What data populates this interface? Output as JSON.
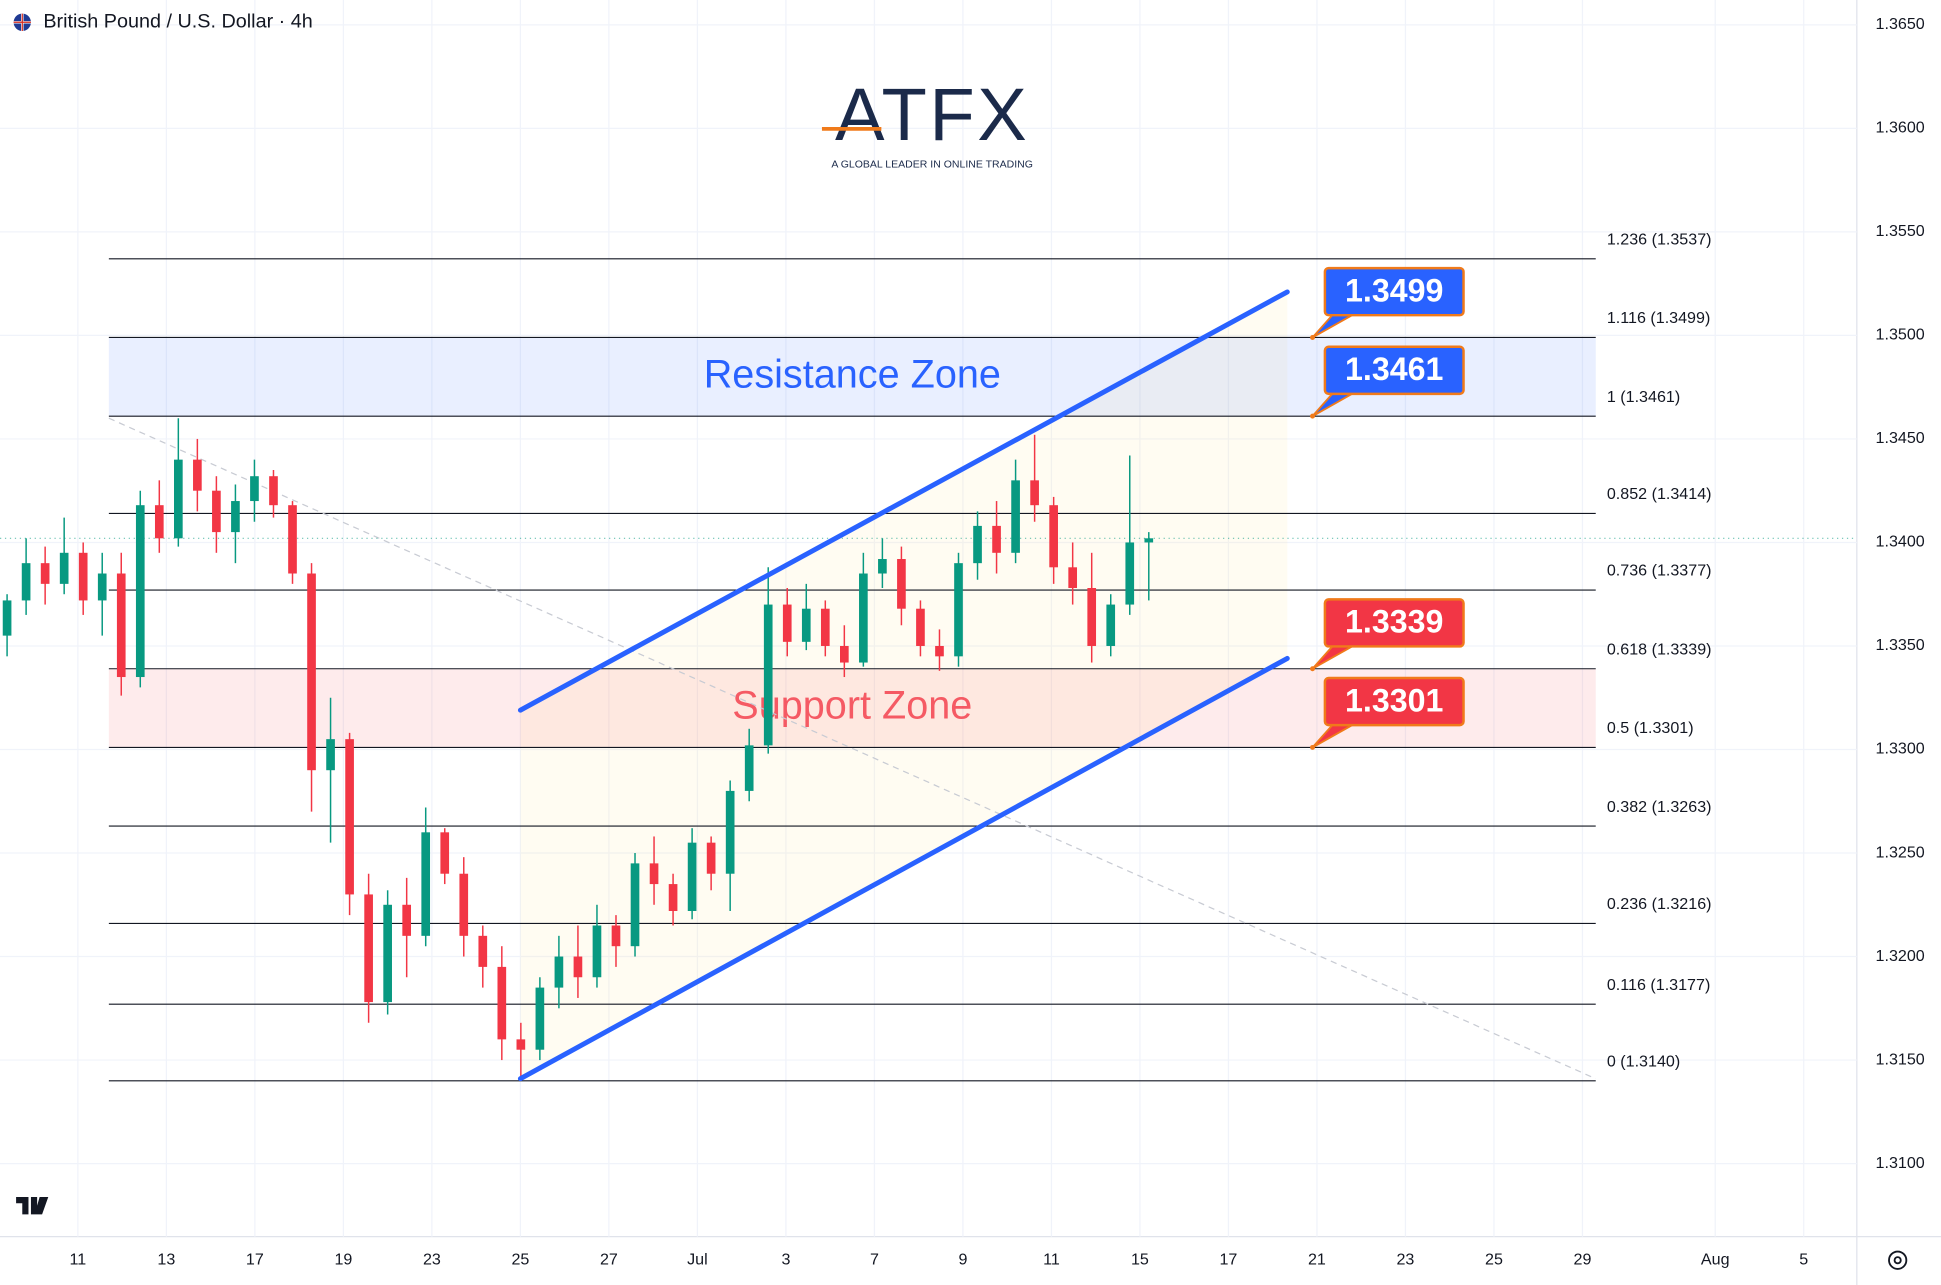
{
  "header": {
    "title": "British Pound / U.S. Dollar · 4h"
  },
  "logo": {
    "name": "ATFX",
    "tagline": "A GLOBAL LEADER IN ONLINE TRADING"
  },
  "chart_data": {
    "type": "candlestick",
    "x": [
      -1.6,
      -1.17,
      -0.74,
      -0.31,
      0.12,
      0.55,
      0.98,
      1.41,
      1.84,
      2.27,
      2.7,
      3.13,
      3.56,
      3.99,
      4.42,
      4.85,
      5.28,
      5.71,
      6.14,
      6.57,
      7.0,
      7.43,
      7.86,
      8.29,
      8.72,
      9.15,
      9.58,
      10.01,
      10.44,
      10.87,
      11.3,
      11.73,
      12.16,
      12.59,
      13.02,
      13.45,
      13.88,
      14.31,
      14.74,
      15.17,
      15.6,
      16.03,
      16.46,
      16.89,
      17.32,
      17.75,
      18.18,
      18.61,
      19.04,
      19.47,
      19.9,
      20.33,
      20.76,
      21.19,
      21.62,
      22.05,
      22.48,
      22.91,
      23.34,
      23.77,
      24.2
    ],
    "open": [
      1.3355,
      1.3372,
      1.339,
      1.338,
      1.3395,
      1.3372,
      1.3385,
      1.3335,
      1.3418,
      1.3402,
      1.344,
      1.3425,
      1.3405,
      1.342,
      1.3432,
      1.3418,
      1.3385,
      1.329,
      1.3305,
      1.323,
      1.3178,
      1.3225,
      1.321,
      1.326,
      1.324,
      1.321,
      1.3195,
      1.316,
      1.3155,
      1.3185,
      1.32,
      1.319,
      1.3215,
      1.3205,
      1.3245,
      1.3235,
      1.3222,
      1.3255,
      1.324,
      1.328,
      1.3302,
      1.337,
      1.3352,
      1.3368,
      1.335,
      1.3342,
      1.3385,
      1.3392,
      1.3368,
      1.335,
      1.3345,
      1.339,
      1.3408,
      1.3395,
      1.343,
      1.3418,
      1.3388,
      1.3378,
      1.335,
      1.337,
      1.34
    ],
    "high": [
      1.3375,
      1.3402,
      1.3398,
      1.3412,
      1.34,
      1.3395,
      1.3395,
      1.3425,
      1.343,
      1.346,
      1.345,
      1.3432,
      1.3428,
      1.344,
      1.3435,
      1.342,
      1.339,
      1.3325,
      1.3308,
      1.324,
      1.3232,
      1.3238,
      1.3272,
      1.3262,
      1.3248,
      1.3215,
      1.3205,
      1.3168,
      1.319,
      1.321,
      1.3215,
      1.3225,
      1.322,
      1.325,
      1.3258,
      1.324,
      1.3262,
      1.3258,
      1.3285,
      1.331,
      1.3388,
      1.3378,
      1.338,
      1.3372,
      1.336,
      1.3395,
      1.3402,
      1.3398,
      1.3372,
      1.3358,
      1.3395,
      1.3415,
      1.342,
      1.344,
      1.3452,
      1.3422,
      1.34,
      1.3395,
      1.3375,
      1.3442,
      1.3405
    ],
    "low": [
      1.3345,
      1.3365,
      1.337,
      1.3375,
      1.3365,
      1.3355,
      1.3326,
      1.333,
      1.3395,
      1.3398,
      1.3415,
      1.3395,
      1.339,
      1.341,
      1.3412,
      1.338,
      1.327,
      1.3255,
      1.322,
      1.3168,
      1.3172,
      1.319,
      1.3205,
      1.3235,
      1.32,
      1.3185,
      1.315,
      1.314,
      1.315,
      1.3175,
      1.318,
      1.3185,
      1.3195,
      1.32,
      1.3225,
      1.3215,
      1.3218,
      1.3232,
      1.3222,
      1.3275,
      1.3298,
      1.3345,
      1.3348,
      1.3345,
      1.3335,
      1.334,
      1.3378,
      1.336,
      1.3345,
      1.3338,
      1.334,
      1.3382,
      1.3385,
      1.339,
      1.341,
      1.338,
      1.337,
      1.3342,
      1.3345,
      1.3365,
      1.3372
    ],
    "close": [
      1.3372,
      1.339,
      1.338,
      1.3395,
      1.3372,
      1.3385,
      1.3335,
      1.3418,
      1.3402,
      1.344,
      1.3425,
      1.3405,
      1.342,
      1.3432,
      1.3418,
      1.3385,
      1.329,
      1.3305,
      1.323,
      1.3178,
      1.3225,
      1.321,
      1.326,
      1.324,
      1.321,
      1.3195,
      1.316,
      1.3155,
      1.3185,
      1.32,
      1.319,
      1.3215,
      1.3205,
      1.3245,
      1.3235,
      1.3222,
      1.3255,
      1.324,
      1.328,
      1.3302,
      1.337,
      1.3352,
      1.3368,
      1.335,
      1.3342,
      1.3385,
      1.3392,
      1.3368,
      1.335,
      1.3345,
      1.339,
      1.3408,
      1.3395,
      1.343,
      1.3418,
      1.3388,
      1.3378,
      1.335,
      1.337,
      1.34,
      1.3402
    ],
    "up_color": "#089981",
    "down_color": "#f23645",
    "xlim": [
      -1.76,
      40.2
    ],
    "xticks": [
      {
        "value": 0,
        "label": "11"
      },
      {
        "value": 2,
        "label": "13"
      },
      {
        "value": 4,
        "label": "17"
      },
      {
        "value": 6,
        "label": "19"
      },
      {
        "value": 8,
        "label": "23"
      },
      {
        "value": 10,
        "label": "25"
      },
      {
        "value": 12,
        "label": "27"
      },
      {
        "value": 14,
        "label": "Jul"
      },
      {
        "value": 16,
        "label": "3"
      },
      {
        "value": 18,
        "label": "7"
      },
      {
        "value": 20,
        "label": "9"
      },
      {
        "value": 22,
        "label": "11"
      },
      {
        "value": 24,
        "label": "15"
      },
      {
        "value": 26,
        "label": "17"
      },
      {
        "value": 28,
        "label": "21"
      },
      {
        "value": 30,
        "label": "23"
      },
      {
        "value": 32,
        "label": "25"
      },
      {
        "value": 34,
        "label": "29"
      },
      {
        "value": 37,
        "label": "Aug"
      },
      {
        "value": 39,
        "label": "5"
      }
    ],
    "ylim": [
      1.30647,
      1.3662
    ],
    "yticks": [
      {
        "value": 1.31,
        "label": "1.3100"
      },
      {
        "value": 1.315,
        "label": "1.3150"
      },
      {
        "value": 1.32,
        "label": "1.3200"
      },
      {
        "value": 1.325,
        "label": "1.3250"
      },
      {
        "value": 1.33,
        "label": "1.3300"
      },
      {
        "value": 1.335,
        "label": "1.3350"
      },
      {
        "value": 1.34,
        "label": "1.3400"
      },
      {
        "value": 1.345,
        "label": "1.3450"
      },
      {
        "value": 1.35,
        "label": "1.3500"
      },
      {
        "value": 1.355,
        "label": "1.3550"
      },
      {
        "value": 1.36,
        "label": "1.3600"
      },
      {
        "value": 1.365,
        "label": "1.3650"
      }
    ],
    "fib_x": [
      0.7,
      34.3
    ],
    "fib_levels": [
      {
        "value": 1.3537,
        "label": "1.236 (1.3537)"
      },
      {
        "value": 1.3499,
        "label": "1.116 (1.3499)"
      },
      {
        "value": 1.3461,
        "label": "1 (1.3461)"
      },
      {
        "value": 1.3414,
        "label": "0.852 (1.3414)"
      },
      {
        "value": 1.3377,
        "label": "0.736 (1.3377)"
      },
      {
        "value": 1.3339,
        "label": "0.618 (1.3339)"
      },
      {
        "value": 1.3301,
        "label": "0.5 (1.3301)"
      },
      {
        "value": 1.3263,
        "label": "0.382 (1.3263)"
      },
      {
        "value": 1.3216,
        "label": "0.236 (1.3216)"
      },
      {
        "value": 1.3177,
        "label": "0.116 (1.3177)"
      },
      {
        "value": 1.314,
        "label": "0 (1.3140)"
      }
    ],
    "zones": [
      {
        "name": "Resistance Zone",
        "range": [
          1.3461,
          1.3499
        ],
        "color": "#2962ff"
      },
      {
        "name": "Support Zone",
        "range": [
          1.3301,
          1.3339
        ],
        "color": "#f23645"
      }
    ],
    "callout_x": 27.9,
    "callouts": [
      {
        "value": 1.3499,
        "color": "#2962ff"
      },
      {
        "value": 1.3461,
        "color": "#2962ff"
      },
      {
        "value": 1.3339,
        "color": "#f23645"
      },
      {
        "value": 1.3301,
        "color": "#f23645"
      }
    ],
    "trendlines": [
      {
        "x": [
          10,
          27.33
        ],
        "values": [
          1.3319,
          1.3521
        ],
        "color": "#2962ff"
      },
      {
        "x": [
          10,
          27.33
        ],
        "values": [
          1.3141,
          1.3344
        ],
        "color": "#2962ff"
      }
    ],
    "guide_line": {
      "x": [
        0.7,
        34.3
      ],
      "values": [
        1.346,
        1.3141
      ]
    }
  }
}
